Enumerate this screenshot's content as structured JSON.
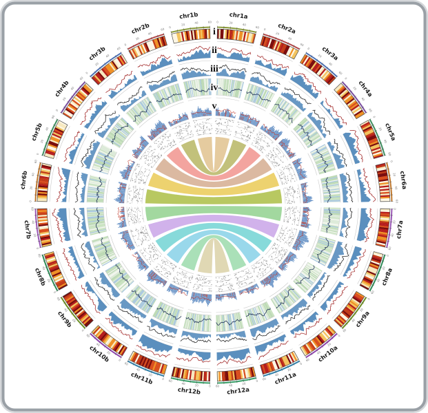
{
  "figure": {
    "background": "#ffffff",
    "frame_color": "#9aa0a6",
    "frame_inner_color": "#d4d7da"
  },
  "chart_data": {
    "type": "circos",
    "title": "",
    "description": "Circular multi-track genome plot with chromosome ideogram heatmap, five annotated data tracks (i-v) and central syntenic chord ribbons linking homologous a/b chromosomes",
    "chromosomes": [
      "chr1a",
      "chr2a",
      "chr3a",
      "chr4a",
      "chr5a",
      "chr6a",
      "chr7a",
      "chr8a",
      "chr9a",
      "chr10a",
      "chr11a",
      "chr12a",
      "chr12b",
      "chr11b",
      "chr10b",
      "chr9b",
      "chr8b",
      "chr7b",
      "chr6b",
      "chr5b",
      "chr4b",
      "chr3b",
      "chr2b",
      "chr1b"
    ],
    "track_labels": [
      "i",
      "ii",
      "iii",
      "iv",
      "v"
    ],
    "tracks": [
      {
        "label": "i",
        "type": "area-line",
        "fill": "#4d86b8",
        "line": "#a63232"
      },
      {
        "label": "ii",
        "type": "area-line",
        "fill": "#5b8fbf",
        "line": "#2b2b2b"
      },
      {
        "label": "iii",
        "type": "heatmap-line",
        "cells": [
          "#bcd9b4",
          "#a9c8de",
          "#dcead8",
          "#f2f6ee",
          "#c9e2c0"
        ],
        "line": "#24365c"
      },
      {
        "label": "iv",
        "type": "histogram",
        "bar": "#4f81bd",
        "line": "#c0392b"
      },
      {
        "label": "v",
        "type": "scatter",
        "dot": "#8f8f8f",
        "line": "#a9a9a9"
      }
    ],
    "ideogram_palette": [
      "#7a0c0c",
      "#b51d1d",
      "#d94f1e",
      "#ef9126",
      "#f3c45f",
      "#f7e9c0",
      "#fdf6e3",
      "#c23b17"
    ],
    "chrom_outline_colors": [
      "#8a9a3a",
      "#b04545",
      "#4a6fb3",
      "#7a4fa0",
      "#3f8f5f",
      "#c07a30",
      "#9b59b6",
      "#2e8b57",
      "#6b8e23",
      "#8e44ad",
      "#2e7fa8",
      "#3aa06a",
      "#3aa06a",
      "#2e7fa8",
      "#8e44ad",
      "#6b8e23",
      "#2e8b57",
      "#9b59b6",
      "#c07a30",
      "#3f8f5f",
      "#7a4fa0",
      "#4a6fb3",
      "#b04545",
      "#8a9a3a"
    ],
    "ticks": {
      "interval": 10
    },
    "chords": [
      {
        "from": "chr1a",
        "to": "chr1b",
        "color": "#dfc08a"
      },
      {
        "from": "chr2a",
        "to": "chr2b",
        "color": "#b5b35e"
      },
      {
        "from": "chr3a",
        "to": "chr3b",
        "color": "#f0908a"
      },
      {
        "from": "chr4a",
        "to": "chr4b",
        "color": "#d3a98c"
      },
      {
        "from": "chr5a",
        "to": "chr5b",
        "color": "#e9c84f"
      },
      {
        "from": "chr6a",
        "to": "chr6b",
        "color": "#a8bc3e"
      },
      {
        "from": "chr7a",
        "to": "chr7b",
        "color": "#8ed08a"
      },
      {
        "from": "chr8a",
        "to": "chr8b",
        "color": "#c7a1e6"
      },
      {
        "from": "chr9a",
        "to": "chr9b",
        "color": "#6cd2d2"
      },
      {
        "from": "chr10a",
        "to": "chr10b",
        "color": "#82cfe6"
      },
      {
        "from": "chr11a",
        "to": "chr11b",
        "color": "#97d9a8"
      },
      {
        "from": "chr12a",
        "to": "chr12b",
        "color": "#d9cfa3"
      }
    ]
  }
}
